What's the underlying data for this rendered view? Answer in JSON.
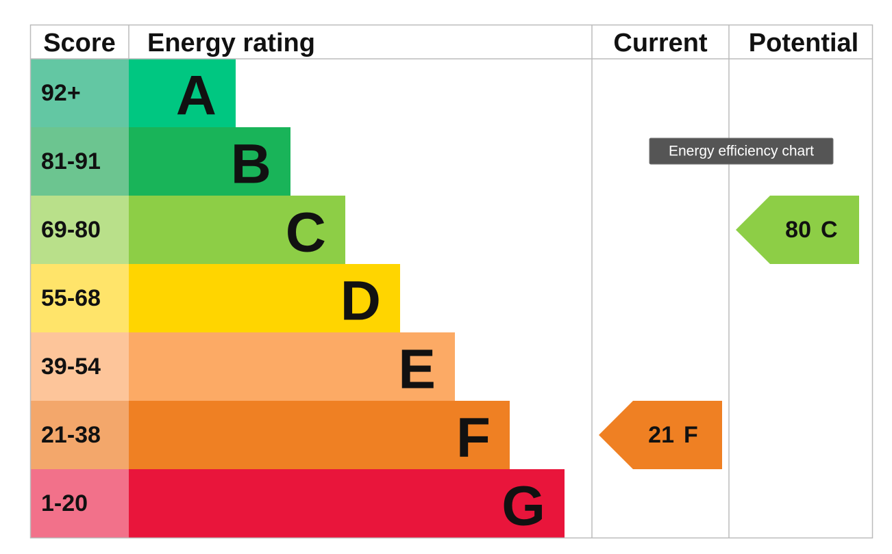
{
  "headers": {
    "score": "Score",
    "rating": "Energy rating",
    "current": "Current",
    "potential": "Potential"
  },
  "rows": [
    {
      "score": "92+",
      "band": "A"
    },
    {
      "score": "81-91",
      "band": "B"
    },
    {
      "score": "69-80",
      "band": "C"
    },
    {
      "score": "55-68",
      "band": "D"
    },
    {
      "score": "39-54",
      "band": "E"
    },
    {
      "score": "21-38",
      "band": "F"
    },
    {
      "score": "1-20",
      "band": "G"
    }
  ],
  "current": {
    "value": 21,
    "band": "F"
  },
  "potential": {
    "value": 80,
    "band": "C"
  },
  "tooltip": "Energy efficiency chart"
}
